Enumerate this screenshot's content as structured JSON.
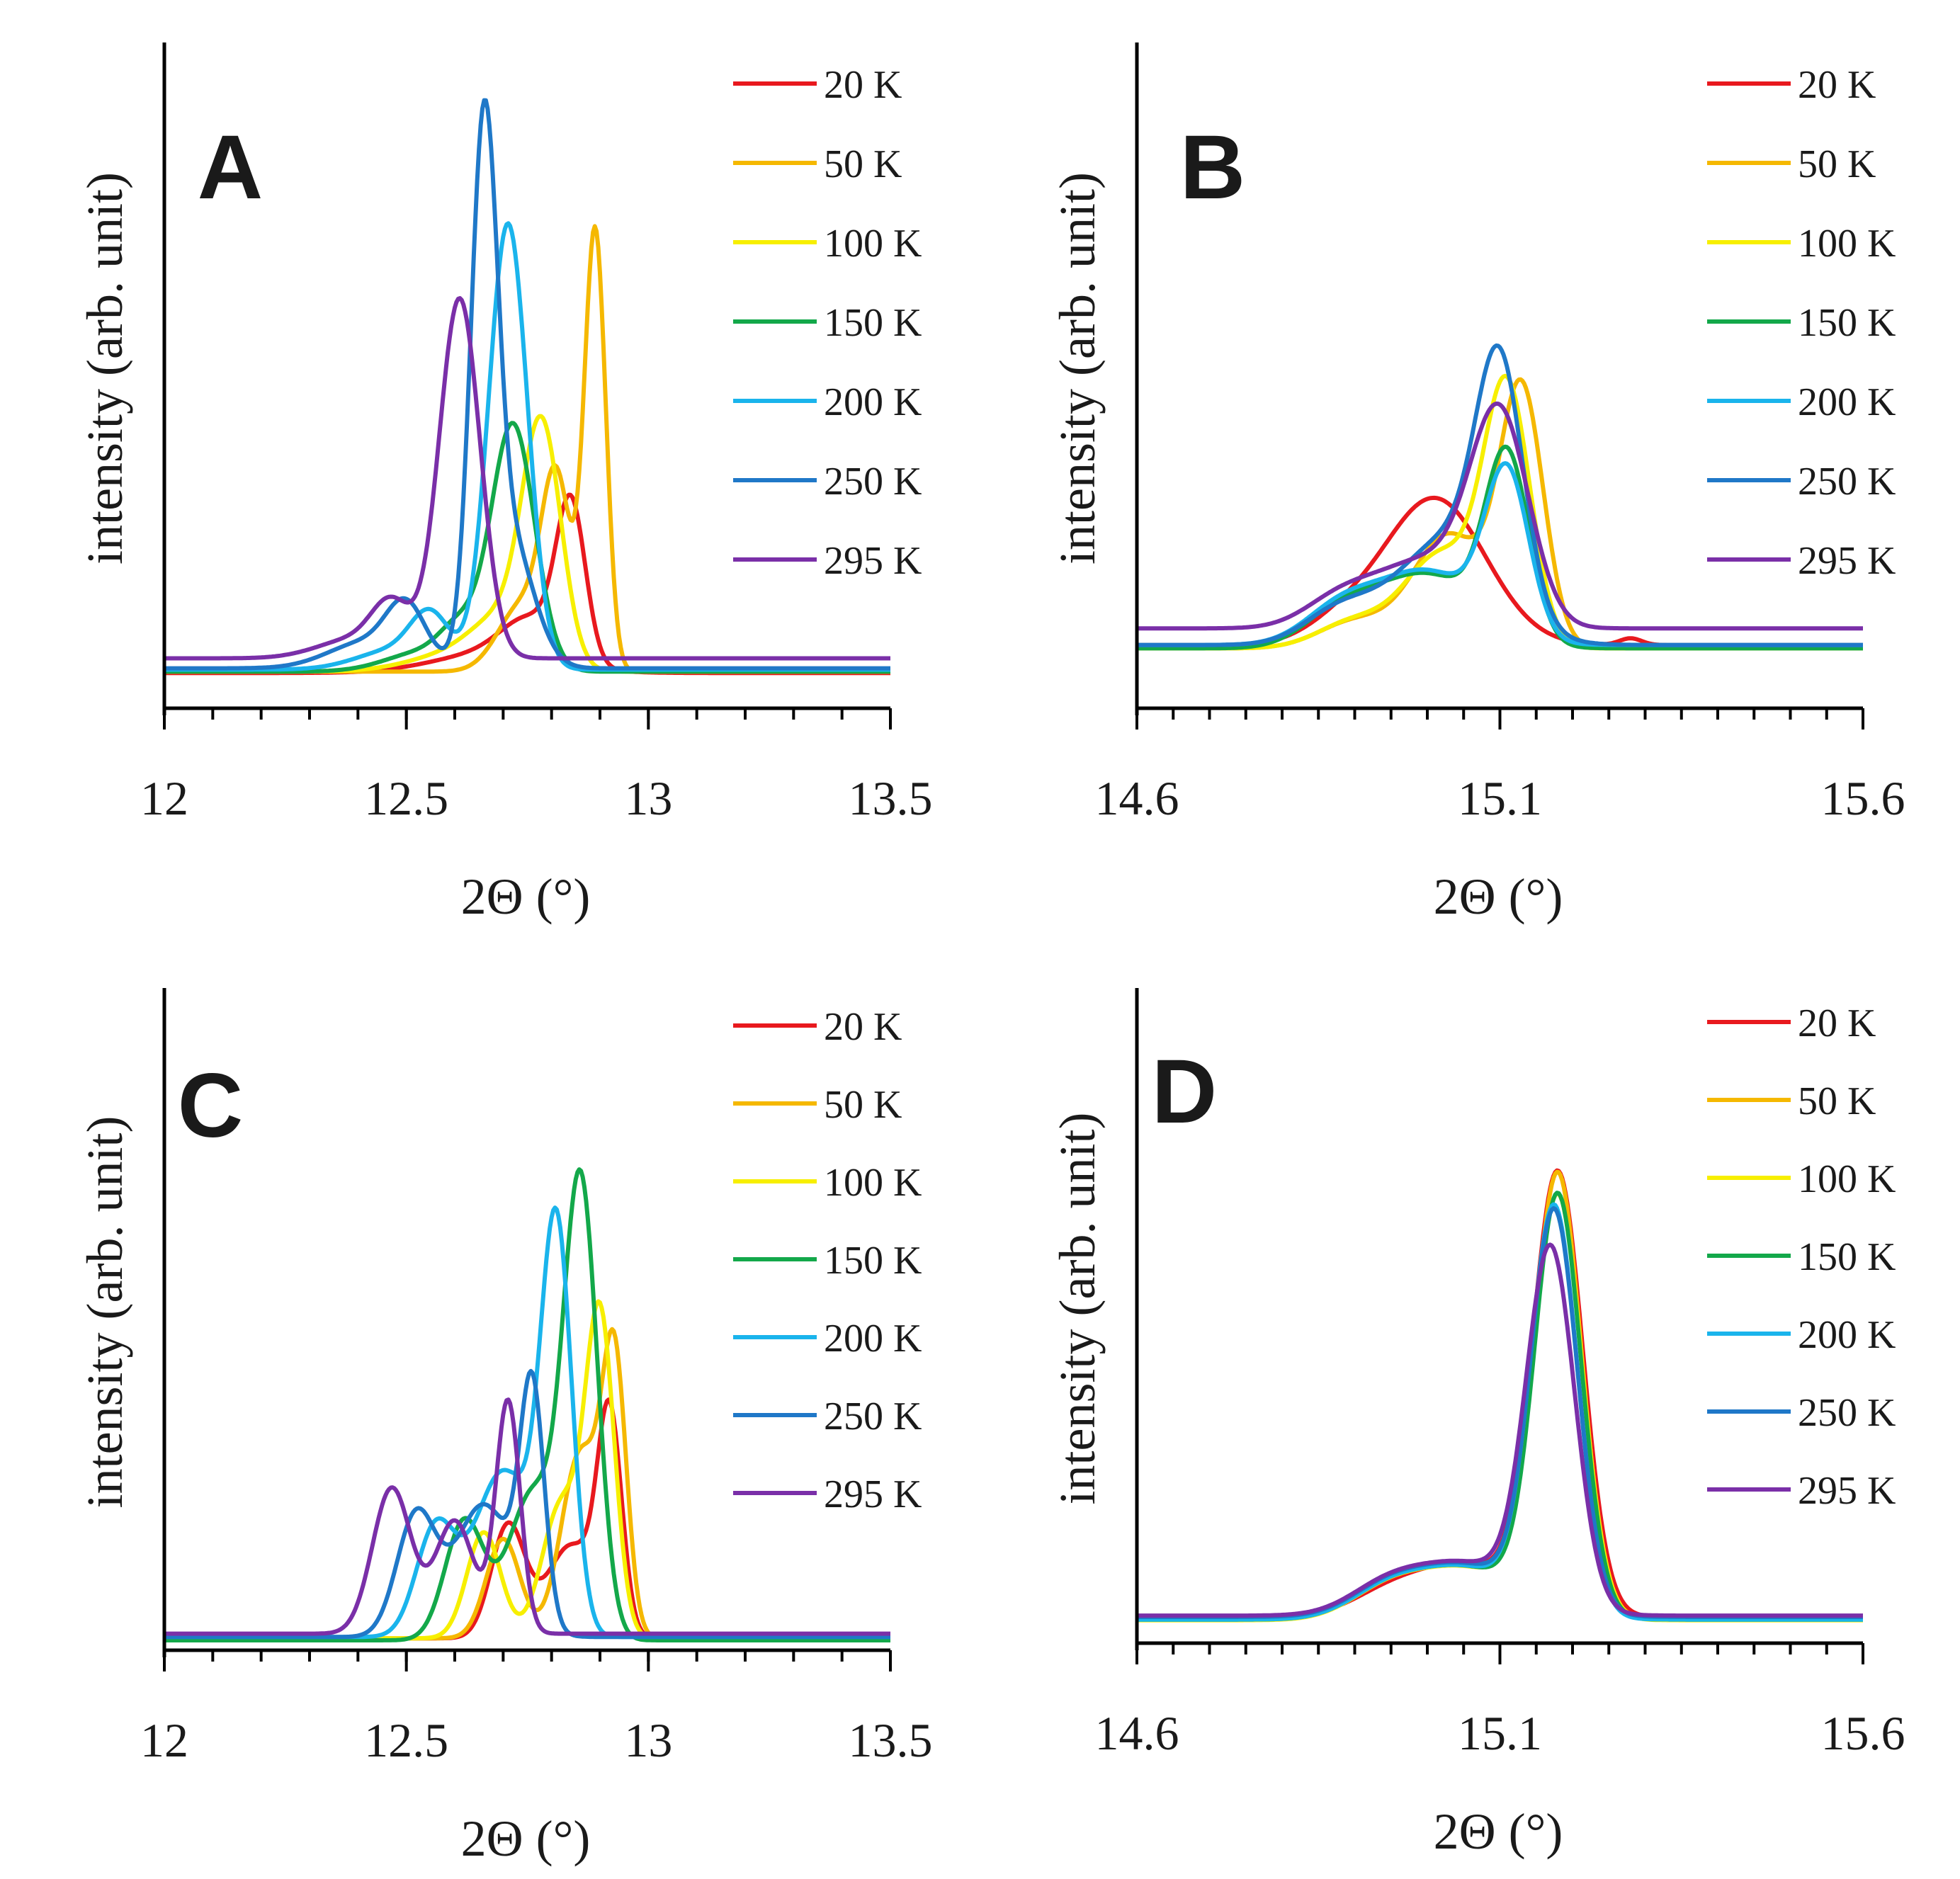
{
  "chart_data": [
    {
      "type": "line",
      "panel_label": "A",
      "xlabel": "2Θ (°)",
      "ylabel": "intensity (arb. unit)",
      "xlim": [
        12,
        13.5
      ],
      "ylim": [
        0,
        1
      ],
      "xticks": [
        "12",
        "12.5",
        "13",
        "13.5"
      ],
      "xtick_values": [
        12,
        12.5,
        13,
        13.5
      ],
      "minor_tick_step": 0.1,
      "legend_position": "top-right",
      "series": [
        {
          "name": "20 K",
          "color": "#e8191e",
          "baseline": 0.053,
          "peaks": [
            [
              12.84,
              0.23,
              0.03
            ],
            [
              12.76,
              0.06,
              0.06
            ],
            [
              12.68,
              0.03,
              0.12
            ]
          ]
        },
        {
          "name": "50 K",
          "color": "#f5b800",
          "baseline": 0.055,
          "peaks": [
            [
              12.89,
              0.66,
              0.022
            ],
            [
              12.81,
              0.27,
              0.03
            ],
            [
              12.74,
              0.1,
              0.05
            ]
          ]
        },
        {
          "name": "100 K",
          "color": "#f7ef00",
          "baseline": 0.055,
          "peaks": [
            [
              12.78,
              0.35,
              0.04
            ],
            [
              12.7,
              0.06,
              0.06
            ],
            [
              12.62,
              0.03,
              0.1
            ]
          ]
        },
        {
          "name": "150 K",
          "color": "#13a84a",
          "baseline": 0.055,
          "peaks": [
            [
              12.72,
              0.37,
              0.045
            ],
            [
              12.61,
              0.05,
              0.04
            ],
            [
              12.54,
              0.03,
              0.08
            ]
          ]
        },
        {
          "name": "200 K",
          "color": "#1ab4ec",
          "baseline": 0.058,
          "peaks": [
            [
              12.71,
              0.67,
              0.04
            ],
            [
              12.55,
              0.07,
              0.04
            ],
            [
              12.48,
              0.03,
              0.08
            ]
          ]
        },
        {
          "name": "250 K",
          "color": "#1f78c8",
          "baseline": 0.06,
          "peaks": [
            [
              12.66,
              0.73,
              0.027
            ],
            [
              12.71,
              0.2,
              0.05
            ],
            [
              12.5,
              0.08,
              0.04
            ],
            [
              12.42,
              0.04,
              0.08
            ]
          ]
        },
        {
          "name": "295 K",
          "color": "#7a2fa8",
          "baseline": 0.075,
          "peaks": [
            [
              12.61,
              0.54,
              0.042
            ],
            [
              12.47,
              0.07,
              0.04
            ],
            [
              12.4,
              0.03,
              0.08
            ]
          ]
        }
      ]
    },
    {
      "type": "line",
      "panel_label": "B",
      "xlabel": "2Θ (°)",
      "ylabel": "intensity (arb. unit)",
      "xlim": [
        14.6,
        15.6
      ],
      "ylim": [
        0,
        1
      ],
      "xticks": [
        "14.6",
        "15.1",
        "15.6"
      ],
      "xtick_values": [
        14.6,
        15.1,
        15.6
      ],
      "minor_tick_step": 0.05,
      "legend_position": "top-right",
      "series": [
        {
          "name": "20 K",
          "color": "#e8191e",
          "baseline": 0.095,
          "peaks": [
            [
              15.01,
              0.22,
              0.07
            ],
            [
              14.88,
              0.03,
              0.05
            ],
            [
              15.28,
              0.01,
              0.015
            ]
          ]
        },
        {
          "name": "50 K",
          "color": "#f5b800",
          "baseline": 0.09,
          "peaks": [
            [
              15.13,
              0.38,
              0.03
            ],
            [
              15.03,
              0.17,
              0.05
            ],
            [
              14.9,
              0.04,
              0.05
            ]
          ]
        },
        {
          "name": "100 K",
          "color": "#f7ef00",
          "baseline": 0.09,
          "peaks": [
            [
              15.11,
              0.38,
              0.032
            ],
            [
              15.02,
              0.14,
              0.05
            ],
            [
              14.9,
              0.04,
              0.05
            ]
          ]
        },
        {
          "name": "150 K",
          "color": "#13a84a",
          "baseline": 0.09,
          "peaks": [
            [
              15.11,
              0.27,
              0.03
            ],
            [
              15.0,
              0.11,
              0.07
            ],
            [
              14.88,
              0.05,
              0.05
            ]
          ]
        },
        {
          "name": "200 K",
          "color": "#1ab4ec",
          "baseline": 0.095,
          "peaks": [
            [
              15.11,
              0.24,
              0.03
            ],
            [
              15.0,
              0.11,
              0.07
            ],
            [
              14.88,
              0.05,
              0.05
            ]
          ]
        },
        {
          "name": "250 K",
          "color": "#1f78c8",
          "baseline": 0.095,
          "peaks": [
            [
              15.1,
              0.35,
              0.032
            ],
            [
              15.03,
              0.16,
              0.07
            ],
            [
              14.88,
              0.05,
              0.05
            ]
          ]
        },
        {
          "name": "295 K",
          "color": "#7a2fa8",
          "baseline": 0.12,
          "peaks": [
            [
              15.1,
              0.3,
              0.04
            ],
            [
              15.0,
              0.1,
              0.07
            ],
            [
              14.88,
              0.04,
              0.05
            ]
          ]
        }
      ]
    },
    {
      "type": "line",
      "panel_label": "C",
      "xlabel": "2Θ (°)",
      "ylabel": "intensity (arb. unit)",
      "xlim": [
        12,
        13.5
      ],
      "ylim": [
        0,
        1
      ],
      "xticks": [
        "12",
        "12.5",
        "13",
        "13.5"
      ],
      "xtick_values": [
        12,
        12.5,
        13,
        13.5
      ],
      "minor_tick_step": 0.1,
      "legend_position": "top-right",
      "series": [
        {
          "name": "20 K",
          "color": "#e8191e",
          "baseline": 0.018,
          "peaks": [
            [
              12.92,
              0.32,
              0.025
            ],
            [
              12.84,
              0.14,
              0.05
            ],
            [
              12.71,
              0.17,
              0.035
            ]
          ]
        },
        {
          "name": "50 K",
          "color": "#f5b800",
          "baseline": 0.018,
          "peaks": [
            [
              12.93,
              0.4,
              0.025
            ],
            [
              12.86,
              0.28,
              0.04
            ],
            [
              12.7,
              0.15,
              0.035
            ]
          ]
        },
        {
          "name": "100 K",
          "color": "#f7ef00",
          "baseline": 0.018,
          "peaks": [
            [
              12.9,
              0.48,
              0.03
            ],
            [
              12.82,
              0.2,
              0.04
            ],
            [
              12.66,
              0.16,
              0.035
            ]
          ]
        },
        {
          "name": "150 K",
          "color": "#13a84a",
          "baseline": 0.015,
          "peaks": [
            [
              12.86,
              0.68,
              0.035
            ],
            [
              12.76,
              0.22,
              0.05
            ],
            [
              12.62,
              0.18,
              0.04
            ]
          ]
        },
        {
          "name": "200 K",
          "color": "#1ab4ec",
          "baseline": 0.02,
          "peaks": [
            [
              12.81,
              0.6,
              0.032
            ],
            [
              12.7,
              0.25,
              0.06
            ],
            [
              12.56,
              0.16,
              0.04
            ]
          ]
        },
        {
          "name": "250 K",
          "color": "#1f78c8",
          "baseline": 0.02,
          "peaks": [
            [
              12.76,
              0.35,
              0.025
            ],
            [
              12.66,
              0.2,
              0.06
            ],
            [
              12.52,
              0.18,
              0.04
            ]
          ]
        },
        {
          "name": "295 K",
          "color": "#7a2fa8",
          "baseline": 0.025,
          "peaks": [
            [
              12.71,
              0.35,
              0.025
            ],
            [
              12.6,
              0.17,
              0.04
            ],
            [
              12.47,
              0.22,
              0.04
            ]
          ]
        }
      ]
    },
    {
      "type": "line",
      "panel_label": "D",
      "xlabel": "2Θ (°)",
      "ylabel": "intensity (arb. unit)",
      "xlim": [
        14.6,
        15.6
      ],
      "ylim": [
        0,
        1
      ],
      "xticks": [
        "14.6",
        "15.1",
        "15.6"
      ],
      "xtick_values": [
        14.6,
        15.1,
        15.6
      ],
      "minor_tick_step": 0.05,
      "legend_position": "top-right",
      "series": [
        {
          "name": "20 K",
          "color": "#e8191e",
          "baseline": 0.04,
          "peaks": [
            [
              15.18,
              0.66,
              0.034
            ],
            [
              15.05,
              0.08,
              0.08
            ],
            [
              14.94,
              0.02,
              0.05
            ]
          ]
        },
        {
          "name": "50 K",
          "color": "#f5b800",
          "baseline": 0.038,
          "peaks": [
            [
              15.18,
              0.66,
              0.032
            ],
            [
              15.05,
              0.08,
              0.08
            ],
            [
              14.94,
              0.03,
              0.05
            ]
          ]
        },
        {
          "name": "100 K",
          "color": "#f7ef00",
          "baseline": 0.035,
          "peaks": [
            [
              15.18,
              0.63,
              0.033
            ],
            [
              15.05,
              0.08,
              0.08
            ],
            [
              14.94,
              0.03,
              0.05
            ]
          ]
        },
        {
          "name": "150 K",
          "color": "#13a84a",
          "baseline": 0.036,
          "peaks": [
            [
              15.18,
              0.63,
              0.032
            ],
            [
              15.05,
              0.08,
              0.08
            ],
            [
              14.94,
              0.03,
              0.05
            ]
          ]
        },
        {
          "name": "200 K",
          "color": "#1ab4ec",
          "baseline": 0.036,
          "peaks": [
            [
              15.175,
              0.61,
              0.032
            ],
            [
              15.05,
              0.08,
              0.08
            ],
            [
              14.94,
              0.03,
              0.05
            ]
          ]
        },
        {
          "name": "250 K",
          "color": "#1f78c8",
          "baseline": 0.04,
          "peaks": [
            [
              15.175,
              0.6,
              0.032
            ],
            [
              15.05,
              0.08,
              0.08
            ],
            [
              14.94,
              0.03,
              0.05
            ]
          ]
        },
        {
          "name": "295 K",
          "color": "#7a2fa8",
          "baseline": 0.042,
          "peaks": [
            [
              15.17,
              0.54,
              0.033
            ],
            [
              15.05,
              0.08,
              0.08
            ],
            [
              14.94,
              0.03,
              0.05
            ]
          ]
        }
      ]
    }
  ]
}
